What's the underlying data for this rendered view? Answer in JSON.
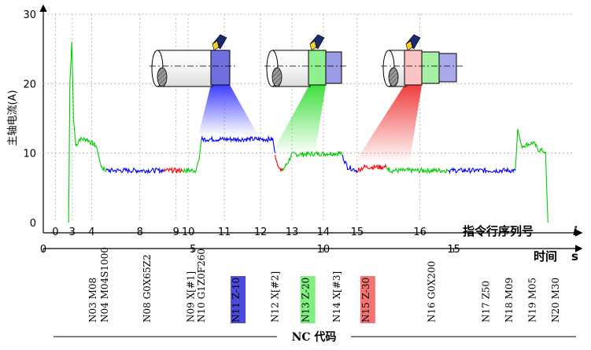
{
  "chart_data": {
    "type": "line",
    "ylabel": "主轴电流(A)",
    "ylim": [
      0,
      30
    ],
    "y_ticks": [
      "0",
      "10",
      "20",
      "30"
    ],
    "xlabel_top": "指令行序列号",
    "xlabel_top_var": "i",
    "xlabel_bottom": "时间",
    "xlabel_bottom_unit": "s",
    "xlim": [
      0,
      22
    ],
    "instruction_ticks": [
      {
        "label": "0",
        "x": 0.5
      },
      {
        "label": "3",
        "x": 1.2
      },
      {
        "label": "4",
        "x": 2.0
      },
      {
        "label": "8",
        "x": 4.0
      },
      {
        "label": "9",
        "x": 5.5
      },
      {
        "label": "10",
        "x": 6.0
      },
      {
        "label": "11",
        "x": 7.5
      },
      {
        "label": "12",
        "x": 9.0
      },
      {
        "label": "13",
        "x": 10.3
      },
      {
        "label": "14",
        "x": 11.6
      },
      {
        "label": "15",
        "x": 13.0
      },
      {
        "label": "16",
        "x": 15.6
      }
    ],
    "time_ticks": [
      {
        "label": "0",
        "x": 0
      },
      {
        "label": "5",
        "x": 6.2
      },
      {
        "label": "10",
        "x": 11.6
      },
      {
        "label": "15",
        "x": 17.0
      }
    ],
    "series": [
      {
        "color": "#00cc00",
        "segments": [
          [
            [
              1.05,
              0
            ],
            [
              1.1,
              20
            ],
            [
              1.18,
              26
            ],
            [
              1.25,
              15
            ],
            [
              1.35,
              11
            ],
            [
              1.5,
              12
            ],
            [
              1.8,
              12
            ],
            [
              2.2,
              11
            ],
            [
              2.4,
              8
            ],
            [
              2.6,
              7.5
            ]
          ],
          [
            [
              5.75,
              7.5
            ],
            [
              6.3,
              7.5
            ],
            [
              6.45,
              9
            ],
            [
              6.55,
              12
            ]
          ],
          [
            [
              9.9,
              7.5
            ],
            [
              10.1,
              8.5
            ],
            [
              10.3,
              9.8
            ],
            [
              12.3,
              10.0
            ],
            [
              12.4,
              9.5
            ]
          ],
          [
            [
              14.2,
              8.0
            ],
            [
              14.4,
              7.5
            ],
            [
              16.8,
              7.5
            ]
          ],
          [
            [
              19.55,
              7.5
            ],
            [
              19.65,
              13.5
            ],
            [
              19.8,
              11
            ],
            [
              20.3,
              11.5
            ],
            [
              20.5,
              10.5
            ],
            [
              20.8,
              10.2
            ],
            [
              20.9,
              0
            ]
          ]
        ]
      },
      {
        "color": "#0000ff",
        "segments": [
          [
            [
              2.6,
              7.5
            ],
            [
              5.0,
              7.5
            ]
          ],
          [
            [
              6.55,
              12
            ],
            [
              6.6,
              12
            ],
            [
              9.5,
              12
            ],
            [
              9.6,
              10
            ]
          ],
          [
            [
              12.4,
              9.5
            ],
            [
              12.6,
              8.0
            ],
            [
              13.0,
              7.5
            ]
          ],
          [
            [
              16.8,
              7.5
            ],
            [
              19.55,
              7.5
            ]
          ]
        ]
      },
      {
        "color": "#ff0000",
        "segments": [
          [
            [
              5.0,
              7.5
            ],
            [
              5.75,
              7.5
            ]
          ],
          [
            [
              9.6,
              10
            ],
            [
              9.7,
              8
            ],
            [
              9.9,
              7.5
            ]
          ],
          [
            [
              13.0,
              7.5
            ],
            [
              13.3,
              8.0
            ],
            [
              14.2,
              8.0
            ]
          ]
        ]
      }
    ],
    "nc_codes": [
      {
        "text": "N03 M08",
        "x": 2.2,
        "highlight": ""
      },
      {
        "text": "N04 M04S1000",
        "x": 2.8,
        "highlight": ""
      },
      {
        "text": "N08 G0X65Z2",
        "x": 5.0,
        "highlight": ""
      },
      {
        "text": "N09 X[#1]",
        "x": 7.25,
        "highlight": ""
      },
      {
        "text": "N10 G1Z0F260",
        "x": 7.8,
        "highlight": ""
      },
      {
        "text": "N11 Z-10",
        "x": 9.6,
        "highlight": "#4b4bdb"
      },
      {
        "text": "N12 X[#2]",
        "x": 11.6,
        "highlight": ""
      },
      {
        "text": "N13 Z-20",
        "x": 13.2,
        "highlight": "#7ff07f"
      },
      {
        "text": "N14 X[#3]",
        "x": 14.8,
        "highlight": ""
      },
      {
        "text": "N15 Z-30",
        "x": 16.3,
        "highlight": "#f47474"
      },
      {
        "text": "N16 G0X200",
        "x": 19.7,
        "highlight": ""
      },
      {
        "text": "N17 Z50",
        "x": 22.5,
        "highlight": ""
      },
      {
        "text": "N18 M09",
        "x": 23.7,
        "highlight": ""
      },
      {
        "text": "N19 M05",
        "x": 24.9,
        "highlight": ""
      },
      {
        "text": "N20 M30",
        "x": 26.1,
        "highlight": ""
      }
    ],
    "nc_title": "NC 代码"
  },
  "colors": {
    "blue": "#0000ff",
    "green": "#00cc00",
    "red": "#ff0000",
    "grid": "#aaaaaa"
  }
}
